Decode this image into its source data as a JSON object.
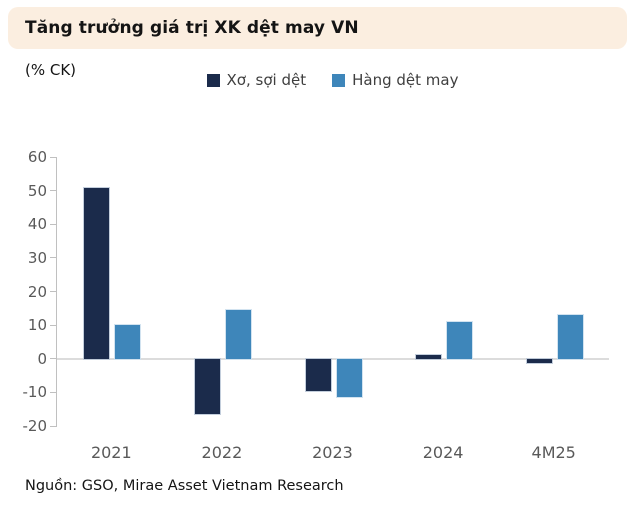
{
  "header": {
    "title": "Tăng trưởng giá trị XK dệt may VN"
  },
  "unit_label": "(% CK)",
  "source": "Nguồn: GSO, Mirae Asset Vietnam Research",
  "colors": {
    "title_band_bg": "#fbeee0",
    "series_dark_navy": "#1b2b4b",
    "series_blue": "#3e86ba",
    "zero_line": "#dcdcdc",
    "axis_line": "#c0c0c0",
    "tick_text": "#595959"
  },
  "chart_data": {
    "type": "bar",
    "title": "Tăng trưởng giá trị XK dệt may VN",
    "ylabel": "(% CK)",
    "xlabel": "",
    "categories": [
      "2021",
      "2022",
      "2023",
      "2024",
      "4M25"
    ],
    "series": [
      {
        "name": "Xơ, sợi dệt",
        "color": "#1b2b4b",
        "values": [
          50.8,
          -16.5,
          -9.5,
          1.2,
          -1.3
        ]
      },
      {
        "name": "Hàng dệt may",
        "color": "#3e86ba",
        "values": [
          9.9,
          14.5,
          -11.5,
          11.0,
          13.1
        ]
      }
    ],
    "ylim": [
      -20,
      60
    ],
    "yticks": [
      60,
      50,
      40,
      30,
      20,
      10,
      0,
      -10,
      -20
    ],
    "grid": "zero-line-only",
    "legend_position": "top-center"
  }
}
